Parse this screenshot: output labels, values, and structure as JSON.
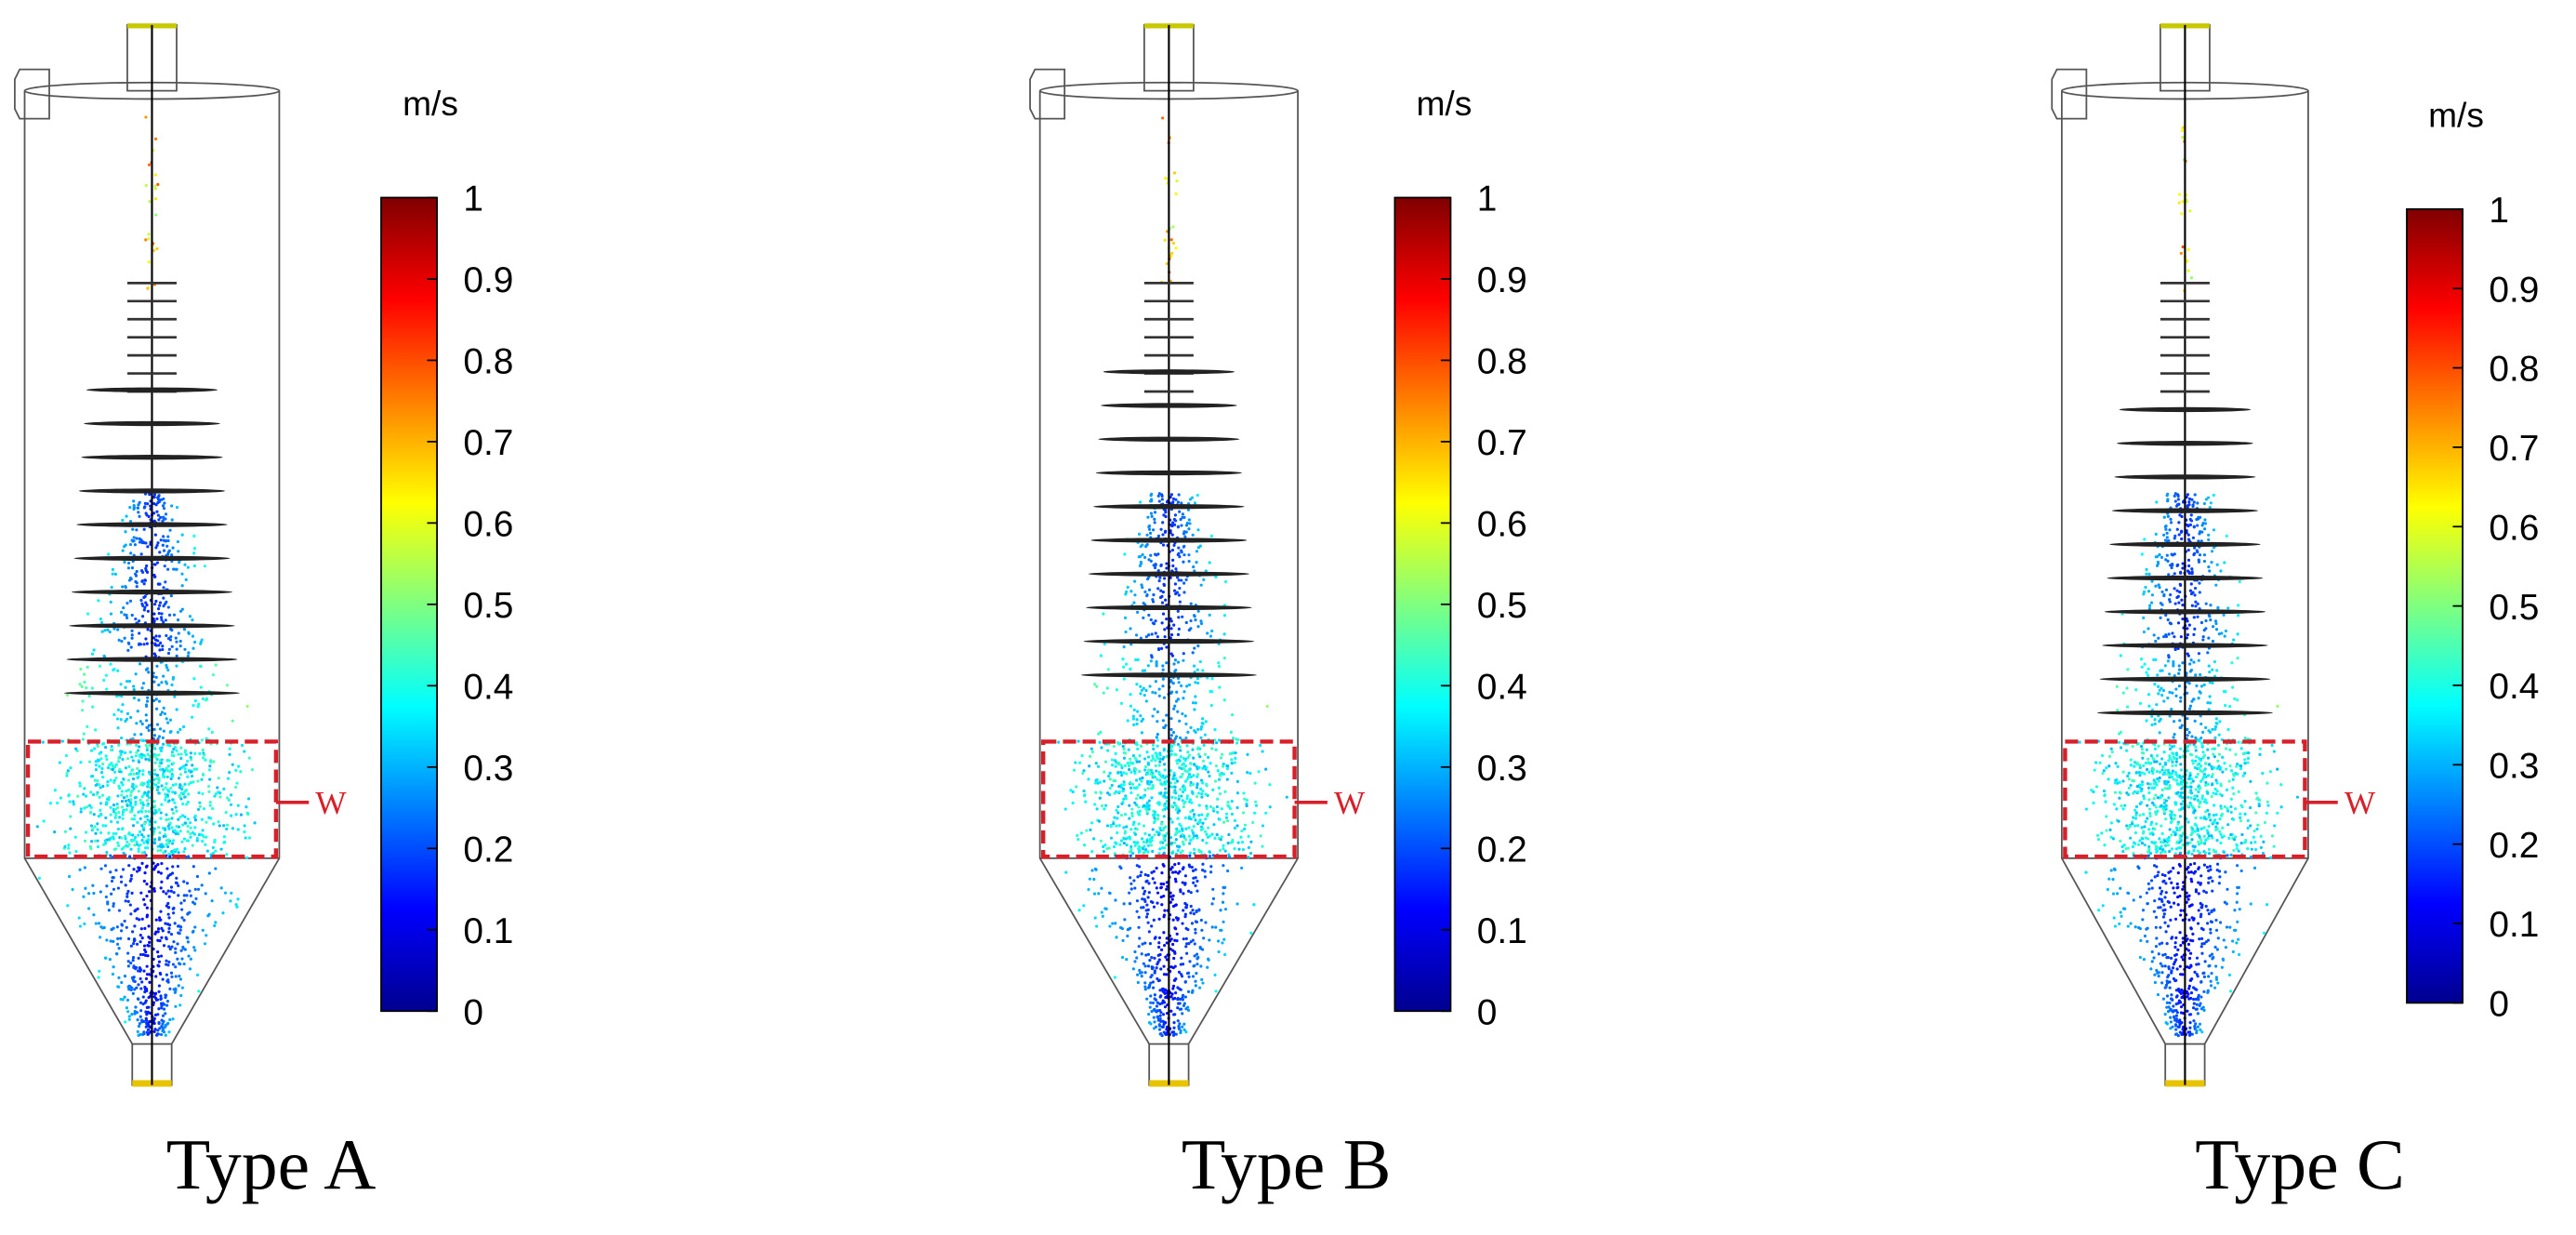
{
  "panels": [
    {
      "caption": "Type A",
      "unit": "m/s",
      "annotation": "W",
      "colorbar": {
        "range": [
          0,
          1
        ],
        "ticks": [
          0,
          0.1,
          0.2,
          0.3,
          0.4,
          0.5,
          0.6,
          0.7,
          0.8,
          0.9,
          1
        ]
      }
    },
    {
      "caption": "Type B",
      "unit": "m/s",
      "annotation": "W",
      "colorbar": {
        "range": [
          0,
          1
        ],
        "ticks": [
          0,
          0.1,
          0.2,
          0.3,
          0.4,
          0.5,
          0.6,
          0.7,
          0.8,
          0.9,
          1
        ]
      }
    },
    {
      "caption": "Type C",
      "unit": "m/s",
      "annotation": "W",
      "colorbar": {
        "range": [
          0,
          1
        ],
        "ticks": [
          0,
          0.1,
          0.2,
          0.3,
          0.4,
          0.5,
          0.6,
          0.7,
          0.8,
          0.9,
          1
        ]
      }
    }
  ]
}
